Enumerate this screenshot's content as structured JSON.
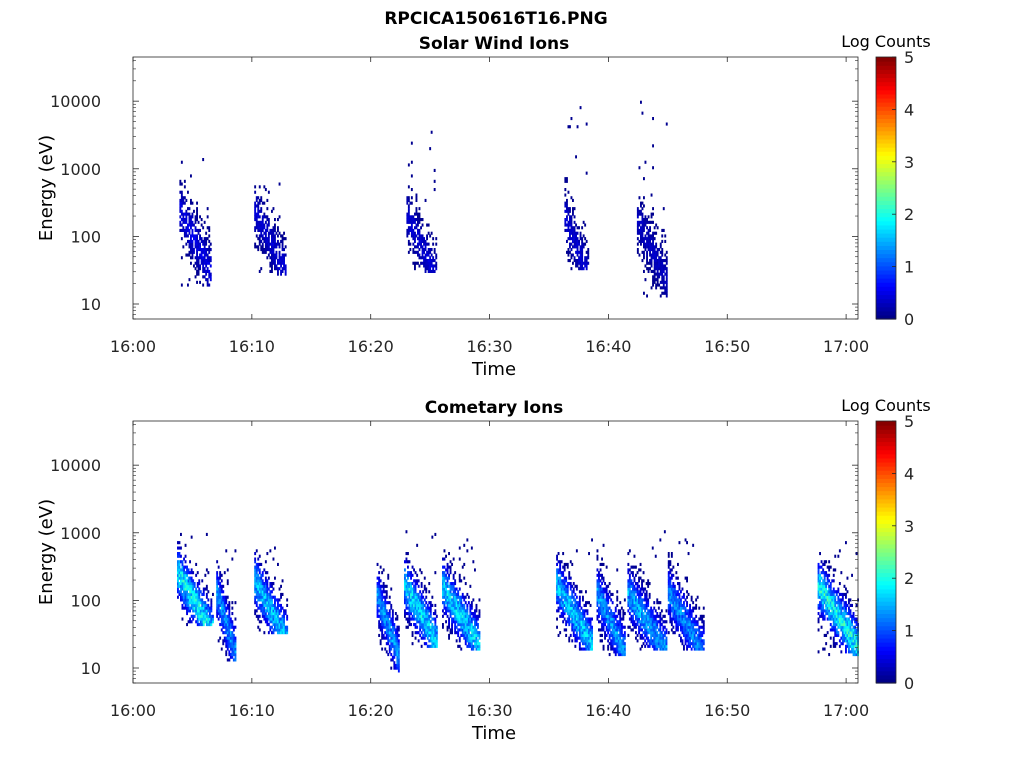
{
  "figure": {
    "title": "RPCICA150616T16.PNG"
  },
  "chart_data": [
    {
      "type": "heatmap",
      "title": "Solar Wind Ions",
      "xlabel": "Time",
      "ylabel": "Energy (eV)",
      "x_ticks": [
        "16:00",
        "16:10",
        "16:20",
        "16:30",
        "16:40",
        "16:50",
        "17:00"
      ],
      "x_range_minutes": [
        0,
        61
      ],
      "y_ticks": [
        "10",
        "100",
        "1000",
        "10000"
      ],
      "y_scale": "log",
      "y_range": [
        6,
        45000
      ],
      "colorbar": {
        "label": "Log Counts",
        "ticks": [
          "0",
          "1",
          "2",
          "3",
          "4",
          "5"
        ],
        "range": [
          0,
          5
        ],
        "colormap": "jet"
      },
      "clusters": [
        {
          "t_start": 3.9,
          "t_end": 6.5,
          "e_center": 110,
          "e_low": 18,
          "e_high": 2000,
          "peak_log": 0.6
        },
        {
          "t_start": 10.2,
          "t_end": 12.8,
          "e_center": 110,
          "e_low": 25,
          "e_high": 2000,
          "peak_log": 0.5
        },
        {
          "t_start": 23.0,
          "t_end": 25.5,
          "e_center": 90,
          "e_low": 28,
          "e_high": 6500,
          "peak_log": 0.5
        },
        {
          "t_start": 36.3,
          "t_end": 38.3,
          "e_center": 90,
          "e_low": 30,
          "e_high": 10000,
          "peak_log": 0.5
        },
        {
          "t_start": 42.4,
          "t_end": 44.9,
          "e_center": 80,
          "e_low": 12,
          "e_high": 10000,
          "peak_log": 0.4
        }
      ]
    },
    {
      "type": "heatmap",
      "title": "Cometary Ions",
      "xlabel": "Time",
      "ylabel": "Energy (eV)",
      "x_ticks": [
        "16:00",
        "16:10",
        "16:20",
        "16:30",
        "16:40",
        "16:50",
        "17:00"
      ],
      "x_range_minutes": [
        0,
        61
      ],
      "y_ticks": [
        "10",
        "100",
        "1000",
        "10000"
      ],
      "y_scale": "log",
      "y_range": [
        6,
        45000
      ],
      "colorbar": {
        "label": "Log Counts",
        "ticks": [
          "0",
          "1",
          "2",
          "3",
          "4",
          "5"
        ],
        "range": [
          0,
          5
        ],
        "colormap": "jet"
      },
      "clusters": [
        {
          "t_start": 3.7,
          "t_end": 6.7,
          "e_center": 120,
          "e_low": 40,
          "e_high": 1000,
          "peak_log": 2.3
        },
        {
          "t_start": 7.0,
          "t_end": 8.6,
          "e_center": 60,
          "e_low": 12,
          "e_high": 600,
          "peak_log": 1.7
        },
        {
          "t_start": 10.2,
          "t_end": 13.0,
          "e_center": 90,
          "e_low": 30,
          "e_high": 600,
          "peak_log": 2.0
        },
        {
          "t_start": 20.5,
          "t_end": 22.3,
          "e_center": 55,
          "e_low": 8,
          "e_high": 350,
          "peak_log": 1.7
        },
        {
          "t_start": 22.8,
          "t_end": 25.6,
          "e_center": 80,
          "e_low": 20,
          "e_high": 1000,
          "peak_log": 2.2
        },
        {
          "t_start": 26.0,
          "t_end": 29.2,
          "e_center": 75,
          "e_low": 18,
          "e_high": 800,
          "peak_log": 2.1
        },
        {
          "t_start": 35.6,
          "t_end": 38.6,
          "e_center": 80,
          "e_low": 18,
          "e_high": 1000,
          "peak_log": 2.0
        },
        {
          "t_start": 39.0,
          "t_end": 41.4,
          "e_center": 60,
          "e_low": 15,
          "e_high": 900,
          "peak_log": 1.7
        },
        {
          "t_start": 41.6,
          "t_end": 44.9,
          "e_center": 60,
          "e_low": 18,
          "e_high": 1000,
          "peak_log": 1.8
        },
        {
          "t_start": 45.0,
          "t_end": 48.0,
          "e_center": 60,
          "e_low": 18,
          "e_high": 1100,
          "peak_log": 1.6
        },
        {
          "t_start": 57.6,
          "t_end": 61.0,
          "e_center": 75,
          "e_low": 15,
          "e_high": 700,
          "peak_log": 2.4
        }
      ]
    }
  ]
}
